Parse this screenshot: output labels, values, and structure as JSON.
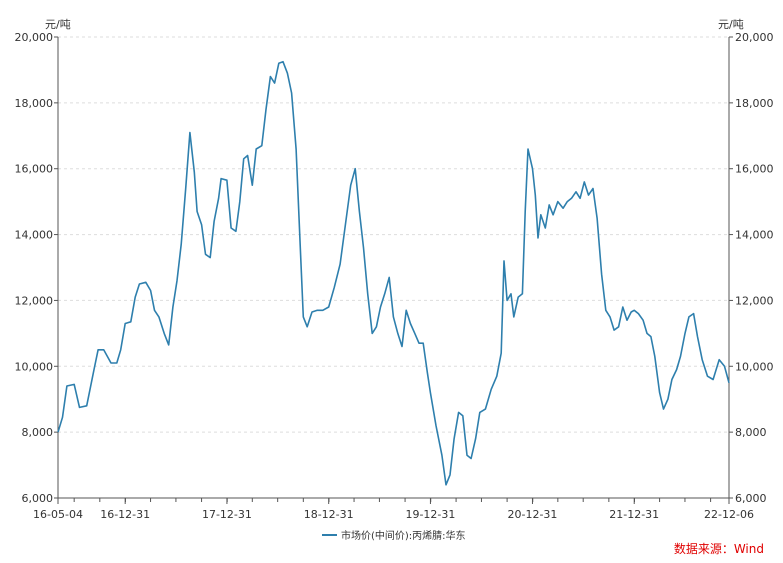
{
  "chart_data": {
    "type": "line",
    "y_unit_left": "元/吨",
    "y_unit_right": "元/吨",
    "ylim": [
      6000,
      20000
    ],
    "yticks": [
      6000,
      8000,
      10000,
      12000,
      14000,
      16000,
      18000,
      20000
    ],
    "ytick_labels": [
      "6,000",
      "8,000",
      "10,000",
      "12,000",
      "14,000",
      "16,000",
      "18,000",
      "20,000"
    ],
    "xlim": [
      "2016-05-04",
      "2022-12-06"
    ],
    "xticks": [
      "2016-05-04",
      "2016-12-31",
      "2017-12-31",
      "2018-12-31",
      "2019-12-31",
      "2020-12-31",
      "2021-12-31",
      "2022-12-06"
    ],
    "xtick_labels": [
      "16-05-04",
      "16-12-31",
      "17-12-31",
      "18-12-31",
      "19-12-31",
      "20-12-31",
      "21-12-31",
      "22-12-06"
    ],
    "grid": "horizontal-dashed",
    "legend_position": "bottom-center",
    "series": [
      {
        "name": "市场价(中间价):丙烯腈:华东",
        "color": "#2e7fad",
        "points": [
          [
            "2016-05-04",
            8000
          ],
          [
            "2016-05-20",
            8450
          ],
          [
            "2016-06-05",
            9400
          ],
          [
            "2016-07-01",
            9450
          ],
          [
            "2016-07-20",
            8750
          ],
          [
            "2016-08-15",
            8800
          ],
          [
            "2016-09-10",
            9900
          ],
          [
            "2016-09-25",
            10500
          ],
          [
            "2016-10-15",
            10500
          ],
          [
            "2016-11-10",
            10100
          ],
          [
            "2016-12-01",
            10100
          ],
          [
            "2016-12-15",
            10500
          ],
          [
            "2016-12-31",
            11300
          ],
          [
            "2017-01-20",
            11350
          ],
          [
            "2017-02-05",
            12100
          ],
          [
            "2017-02-20",
            12500
          ],
          [
            "2017-03-15",
            12550
          ],
          [
            "2017-04-01",
            12300
          ],
          [
            "2017-04-15",
            11700
          ],
          [
            "2017-05-01",
            11500
          ],
          [
            "2017-05-20",
            11000
          ],
          [
            "2017-06-05",
            10650
          ],
          [
            "2017-06-20",
            11800
          ],
          [
            "2017-07-05",
            12600
          ],
          [
            "2017-07-20",
            13700
          ],
          [
            "2017-08-05",
            15400
          ],
          [
            "2017-08-20",
            17100
          ],
          [
            "2017-09-05",
            15900
          ],
          [
            "2017-09-15",
            14700
          ],
          [
            "2017-10-01",
            14300
          ],
          [
            "2017-10-15",
            13400
          ],
          [
            "2017-11-01",
            13300
          ],
          [
            "2017-11-15",
            14400
          ],
          [
            "2017-12-01",
            15100
          ],
          [
            "2017-12-10",
            15700
          ],
          [
            "2017-12-31",
            15650
          ],
          [
            "2018-01-15",
            14200
          ],
          [
            "2018-02-01",
            14100
          ],
          [
            "2018-02-15",
            15000
          ],
          [
            "2018-03-01",
            16300
          ],
          [
            "2018-03-15",
            16400
          ],
          [
            "2018-04-01",
            15500
          ],
          [
            "2018-04-15",
            16600
          ],
          [
            "2018-05-05",
            16700
          ],
          [
            "2018-05-20",
            17800
          ],
          [
            "2018-06-05",
            18800
          ],
          [
            "2018-06-20",
            18600
          ],
          [
            "2018-07-05",
            19200
          ],
          [
            "2018-07-20",
            19250
          ],
          [
            "2018-08-05",
            18900
          ],
          [
            "2018-08-20",
            18300
          ],
          [
            "2018-09-05",
            16600
          ],
          [
            "2018-09-20",
            13600
          ],
          [
            "2018-10-01",
            11500
          ],
          [
            "2018-10-15",
            11200
          ],
          [
            "2018-11-01",
            11650
          ],
          [
            "2018-11-20",
            11700
          ],
          [
            "2018-12-10",
            11700
          ],
          [
            "2018-12-31",
            11800
          ],
          [
            "2019-01-20",
            12400
          ],
          [
            "2019-02-10",
            13100
          ],
          [
            "2019-03-01",
            14300
          ],
          [
            "2019-03-20",
            15500
          ],
          [
            "2019-04-05",
            16000
          ],
          [
            "2019-04-20",
            14700
          ],
          [
            "2019-05-05",
            13600
          ],
          [
            "2019-05-20",
            12200
          ],
          [
            "2019-06-05",
            11000
          ],
          [
            "2019-06-20",
            11200
          ],
          [
            "2019-07-05",
            11800
          ],
          [
            "2019-07-20",
            12200
          ],
          [
            "2019-08-05",
            12700
          ],
          [
            "2019-08-20",
            11500
          ],
          [
            "2019-09-05",
            11000
          ],
          [
            "2019-09-20",
            10600
          ],
          [
            "2019-10-05",
            11700
          ],
          [
            "2019-10-20",
            11300
          ],
          [
            "2019-11-05",
            11000
          ],
          [
            "2019-11-20",
            10700
          ],
          [
            "2019-12-05",
            10700
          ],
          [
            "2019-12-20",
            9800
          ],
          [
            "2019-12-31",
            9200
          ],
          [
            "2020-01-20",
            8200
          ],
          [
            "2020-02-10",
            7300
          ],
          [
            "2020-02-25",
            6400
          ],
          [
            "2020-03-10",
            6700
          ],
          [
            "2020-03-25",
            7800
          ],
          [
            "2020-04-10",
            8600
          ],
          [
            "2020-04-25",
            8500
          ],
          [
            "2020-05-10",
            7300
          ],
          [
            "2020-05-25",
            7200
          ],
          [
            "2020-06-10",
            7800
          ],
          [
            "2020-06-25",
            8600
          ],
          [
            "2020-07-15",
            8700
          ],
          [
            "2020-08-05",
            9300
          ],
          [
            "2020-08-25",
            9700
          ],
          [
            "2020-09-10",
            10400
          ],
          [
            "2020-09-20",
            13200
          ],
          [
            "2020-10-01",
            12000
          ],
          [
            "2020-10-15",
            12200
          ],
          [
            "2020-10-25",
            11500
          ],
          [
            "2020-11-10",
            12100
          ],
          [
            "2020-11-25",
            12200
          ],
          [
            "2020-12-05",
            14700
          ],
          [
            "2020-12-15",
            16600
          ],
          [
            "2020-12-31",
            16000
          ],
          [
            "2021-01-10",
            15200
          ],
          [
            "2021-01-20",
            13900
          ],
          [
            "2021-01-30",
            14600
          ],
          [
            "2021-02-15",
            14200
          ],
          [
            "2021-03-01",
            14900
          ],
          [
            "2021-03-15",
            14600
          ],
          [
            "2021-04-01",
            15000
          ],
          [
            "2021-04-20",
            14800
          ],
          [
            "2021-05-05",
            15000
          ],
          [
            "2021-05-20",
            15100
          ],
          [
            "2021-06-05",
            15300
          ],
          [
            "2021-06-20",
            15100
          ],
          [
            "2021-07-05",
            15600
          ],
          [
            "2021-07-20",
            15200
          ],
          [
            "2021-08-05",
            15400
          ],
          [
            "2021-08-20",
            14500
          ],
          [
            "2021-09-05",
            12800
          ],
          [
            "2021-09-20",
            11700
          ],
          [
            "2021-10-05",
            11500
          ],
          [
            "2021-10-20",
            11100
          ],
          [
            "2021-11-05",
            11200
          ],
          [
            "2021-11-20",
            11800
          ],
          [
            "2021-12-05",
            11400
          ],
          [
            "2021-12-20",
            11650
          ],
          [
            "2021-12-31",
            11700
          ],
          [
            "2022-01-15",
            11600
          ],
          [
            "2022-02-01",
            11400
          ],
          [
            "2022-02-15",
            11000
          ],
          [
            "2022-03-01",
            10900
          ],
          [
            "2022-03-15",
            10300
          ],
          [
            "2022-04-01",
            9200
          ],
          [
            "2022-04-15",
            8700
          ],
          [
            "2022-05-01",
            9000
          ],
          [
            "2022-05-15",
            9600
          ],
          [
            "2022-06-01",
            9900
          ],
          [
            "2022-06-15",
            10300
          ],
          [
            "2022-07-01",
            11000
          ],
          [
            "2022-07-15",
            11500
          ],
          [
            "2022-08-01",
            11600
          ],
          [
            "2022-08-15",
            10900
          ],
          [
            "2022-09-01",
            10200
          ],
          [
            "2022-09-20",
            9700
          ],
          [
            "2022-10-10",
            9600
          ],
          [
            "2022-11-01",
            10200
          ],
          [
            "2022-11-20",
            10000
          ],
          [
            "2022-12-06",
            9500
          ]
        ]
      }
    ]
  },
  "source_text": "数据来源：Wind"
}
